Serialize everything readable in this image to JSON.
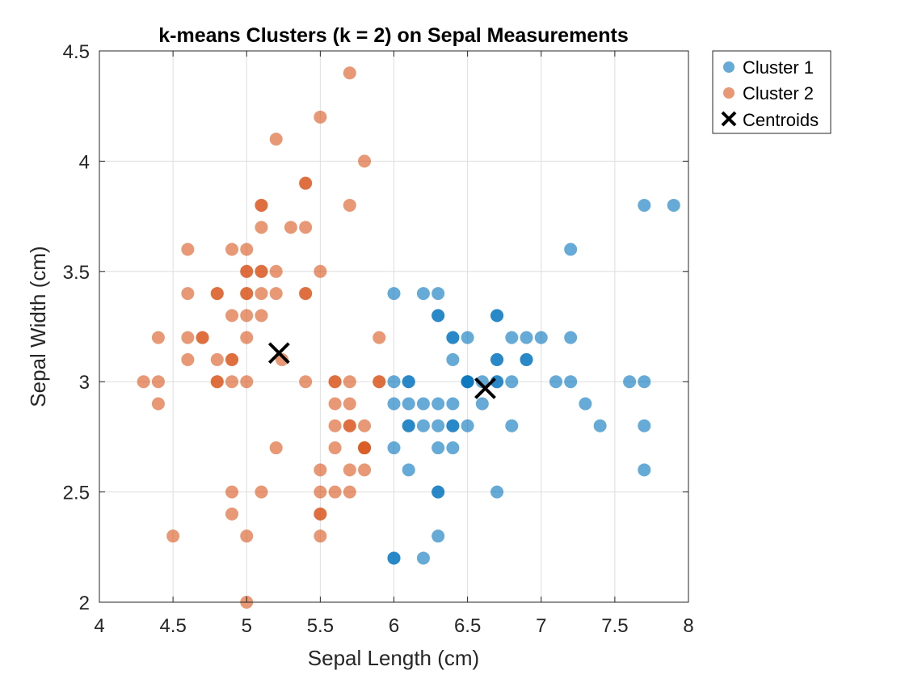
{
  "chart_data": {
    "type": "scatter",
    "title": "k-means Clusters (k = 2) on Sepal Measurements",
    "xlabel": "Sepal Length (cm)",
    "ylabel": "Sepal Width  (cm)",
    "xlim": [
      4,
      8
    ],
    "ylim": [
      2,
      4.5
    ],
    "xticks": [
      4,
      4.5,
      5,
      5.5,
      6,
      6.5,
      7,
      7.5,
      8
    ],
    "xtick_labels": [
      "4",
      "4.5",
      "5",
      "5.5",
      "6",
      "6.5",
      "7",
      "7.5",
      "8"
    ],
    "yticks": [
      2,
      2.5,
      3,
      3.5,
      4,
      4.5
    ],
    "ytick_labels": [
      "2",
      "2.5",
      "3",
      "3.5",
      "4",
      "4.5"
    ],
    "grid": true,
    "legend_position": "outside-top-right",
    "series": [
      {
        "name": "Cluster 1",
        "color": "#0072BD",
        "points": [
          [
            6.0,
            3.4
          ],
          [
            6.2,
            3.4
          ],
          [
            6.3,
            3.4
          ],
          [
            6.3,
            3.3
          ],
          [
            6.3,
            3.3
          ],
          [
            6.7,
            3.3
          ],
          [
            6.7,
            3.3
          ],
          [
            7.2,
            3.6
          ],
          [
            7.7,
            3.8
          ],
          [
            7.9,
            3.8
          ],
          [
            6.4,
            3.2
          ],
          [
            6.4,
            3.2
          ],
          [
            6.5,
            3.2
          ],
          [
            6.8,
            3.2
          ],
          [
            6.9,
            3.2
          ],
          [
            7.0,
            3.2
          ],
          [
            7.2,
            3.2
          ],
          [
            6.4,
            3.1
          ],
          [
            6.7,
            3.1
          ],
          [
            6.7,
            3.1
          ],
          [
            6.9,
            3.1
          ],
          [
            6.9,
            3.1
          ],
          [
            6.0,
            3.0
          ],
          [
            6.1,
            3.0
          ],
          [
            6.1,
            3.0
          ],
          [
            6.5,
            3.0
          ],
          [
            6.5,
            3.0
          ],
          [
            6.5,
            3.0
          ],
          [
            6.6,
            3.0
          ],
          [
            6.7,
            3.0
          ],
          [
            6.7,
            3.0
          ],
          [
            6.8,
            3.0
          ],
          [
            7.1,
            3.0
          ],
          [
            7.2,
            3.0
          ],
          [
            7.6,
            3.0
          ],
          [
            7.7,
            3.0
          ],
          [
            6.0,
            2.9
          ],
          [
            6.1,
            2.9
          ],
          [
            6.2,
            2.9
          ],
          [
            6.3,
            2.9
          ],
          [
            6.4,
            2.9
          ],
          [
            6.6,
            2.9
          ],
          [
            7.3,
            2.9
          ],
          [
            6.1,
            2.8
          ],
          [
            6.1,
            2.8
          ],
          [
            6.2,
            2.8
          ],
          [
            6.3,
            2.8
          ],
          [
            6.4,
            2.8
          ],
          [
            6.4,
            2.8
          ],
          [
            6.5,
            2.8
          ],
          [
            6.8,
            2.8
          ],
          [
            7.4,
            2.8
          ],
          [
            7.7,
            2.8
          ],
          [
            6.0,
            2.7
          ],
          [
            6.3,
            2.7
          ],
          [
            6.4,
            2.7
          ],
          [
            6.1,
            2.6
          ],
          [
            7.7,
            2.6
          ],
          [
            6.3,
            2.5
          ],
          [
            6.3,
            2.5
          ],
          [
            6.7,
            2.5
          ],
          [
            6.3,
            2.3
          ],
          [
            6.0,
            2.2
          ],
          [
            6.0,
            2.2
          ],
          [
            6.2,
            2.2
          ]
        ]
      },
      {
        "name": "Cluster 2",
        "color": "#D95319",
        "points": [
          [
            5.7,
            4.4
          ],
          [
            5.5,
            4.2
          ],
          [
            5.2,
            4.1
          ],
          [
            5.8,
            4.0
          ],
          [
            5.4,
            3.9
          ],
          [
            5.4,
            3.9
          ],
          [
            5.1,
            3.8
          ],
          [
            5.1,
            3.8
          ],
          [
            5.7,
            3.8
          ],
          [
            5.1,
            3.7
          ],
          [
            5.3,
            3.7
          ],
          [
            5.4,
            3.7
          ],
          [
            4.6,
            3.6
          ],
          [
            4.9,
            3.6
          ],
          [
            5.0,
            3.6
          ],
          [
            5.0,
            3.5
          ],
          [
            5.0,
            3.5
          ],
          [
            5.1,
            3.5
          ],
          [
            5.1,
            3.5
          ],
          [
            5.2,
            3.5
          ],
          [
            5.5,
            3.5
          ],
          [
            4.6,
            3.4
          ],
          [
            4.8,
            3.4
          ],
          [
            4.8,
            3.4
          ],
          [
            5.0,
            3.4
          ],
          [
            5.0,
            3.4
          ],
          [
            5.1,
            3.4
          ],
          [
            5.2,
            3.4
          ],
          [
            5.4,
            3.4
          ],
          [
            5.4,
            3.4
          ],
          [
            4.9,
            3.3
          ],
          [
            5.0,
            3.3
          ],
          [
            5.1,
            3.3
          ],
          [
            4.4,
            3.2
          ],
          [
            4.6,
            3.2
          ],
          [
            4.7,
            3.2
          ],
          [
            4.7,
            3.2
          ],
          [
            5.0,
            3.2
          ],
          [
            5.9,
            3.2
          ],
          [
            4.6,
            3.1
          ],
          [
            4.8,
            3.1
          ],
          [
            4.9,
            3.1
          ],
          [
            4.9,
            3.1
          ],
          [
            5.24,
            3.1
          ],
          [
            4.3,
            3.0
          ],
          [
            4.4,
            3.0
          ],
          [
            4.8,
            3.0
          ],
          [
            4.8,
            3.0
          ],
          [
            4.9,
            3.0
          ],
          [
            5.0,
            3.0
          ],
          [
            5.4,
            3.0
          ],
          [
            5.6,
            3.0
          ],
          [
            5.6,
            3.0
          ],
          [
            5.7,
            3.0
          ],
          [
            5.9,
            3.0
          ],
          [
            5.9,
            3.0
          ],
          [
            4.4,
            2.9
          ],
          [
            5.6,
            2.9
          ],
          [
            5.7,
            2.9
          ],
          [
            5.6,
            2.8
          ],
          [
            5.7,
            2.8
          ],
          [
            5.7,
            2.8
          ],
          [
            5.8,
            2.8
          ],
          [
            5.2,
            2.7
          ],
          [
            5.6,
            2.7
          ],
          [
            5.8,
            2.7
          ],
          [
            5.8,
            2.7
          ],
          [
            5.8,
            2.7
          ],
          [
            5.5,
            2.6
          ],
          [
            5.7,
            2.6
          ],
          [
            5.8,
            2.6
          ],
          [
            4.9,
            2.5
          ],
          [
            5.1,
            2.5
          ],
          [
            5.5,
            2.5
          ],
          [
            5.6,
            2.5
          ],
          [
            5.7,
            2.5
          ],
          [
            4.9,
            2.4
          ],
          [
            5.5,
            2.4
          ],
          [
            5.5,
            2.4
          ],
          [
            4.5,
            2.3
          ],
          [
            5.0,
            2.3
          ],
          [
            5.5,
            2.3
          ],
          [
            5.0,
            2.0
          ]
        ]
      }
    ],
    "centroids": {
      "name": "Centroids",
      "color": "#000000",
      "points": [
        [
          5.22,
          3.13
        ],
        [
          6.62,
          2.97
        ]
      ]
    }
  }
}
